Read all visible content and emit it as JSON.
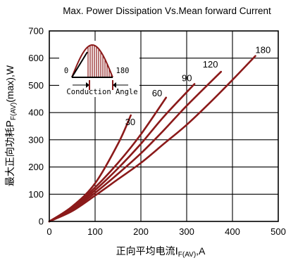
{
  "chart_data": {
    "type": "line",
    "title": "Max. Power Dissipation Vs.Mean forward Current",
    "xlabel_cjk": "正向平均电流",
    "xlabel_symbol": "I",
    "xlabel_sub": "F(AV)",
    "xlabel_unit": ",A",
    "ylabel_cjk": "最大正向功耗",
    "ylabel_symbol": "P",
    "ylabel_sub": "F(AV)",
    "ylabel_unit": "(max),W",
    "xlim": [
      0,
      500
    ],
    "ylim": [
      0,
      700
    ],
    "x_ticks": [
      0,
      100,
      200,
      300,
      400,
      500
    ],
    "y_ticks": [
      0,
      100,
      200,
      300,
      400,
      500,
      600,
      700
    ],
    "grid": true,
    "series_color": "#8b1a1a",
    "series": [
      {
        "name": "30",
        "points": [
          [
            0,
            0
          ],
          [
            50,
            55
          ],
          [
            100,
            140
          ],
          [
            150,
            285
          ],
          [
            178,
            390
          ]
        ]
      },
      {
        "name": "60",
        "points": [
          [
            0,
            0
          ],
          [
            50,
            50
          ],
          [
            100,
            125
          ],
          [
            150,
            215
          ],
          [
            200,
            320
          ],
          [
            255,
            455
          ]
        ]
      },
      {
        "name": "90",
        "points": [
          [
            0,
            0
          ],
          [
            50,
            47
          ],
          [
            100,
            115
          ],
          [
            150,
            195
          ],
          [
            200,
            285
          ],
          [
            250,
            385
          ],
          [
            317,
            505
          ]
        ]
      },
      {
        "name": "120",
        "points": [
          [
            0,
            0
          ],
          [
            50,
            43
          ],
          [
            100,
            105
          ],
          [
            150,
            175
          ],
          [
            200,
            250
          ],
          [
            250,
            335
          ],
          [
            300,
            425
          ],
          [
            375,
            550
          ]
        ]
      },
      {
        "name": "180",
        "points": [
          [
            0,
            0
          ],
          [
            50,
            38
          ],
          [
            100,
            95
          ],
          [
            150,
            155
          ],
          [
            200,
            215
          ],
          [
            250,
            285
          ],
          [
            300,
            355
          ],
          [
            350,
            435
          ],
          [
            400,
            520
          ],
          [
            450,
            608
          ]
        ]
      }
    ],
    "inset": {
      "label_start": "0",
      "label_end": "180",
      "caption": "Conduction Angle"
    }
  }
}
